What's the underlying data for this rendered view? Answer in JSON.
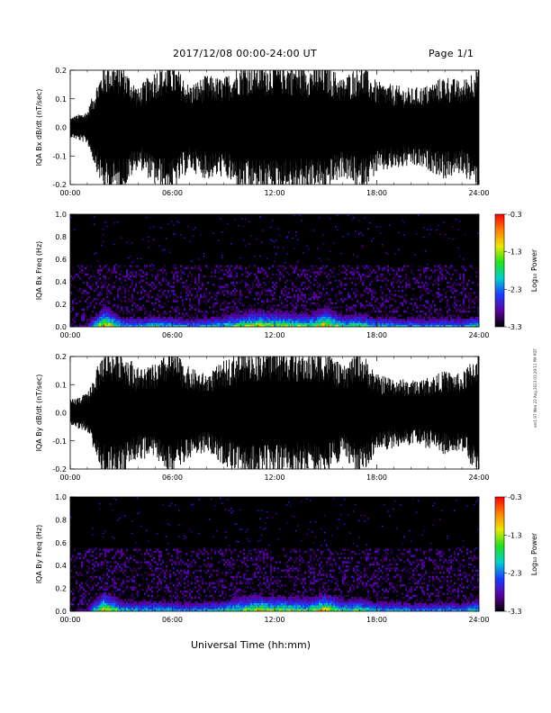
{
  "header": {
    "title": "2017/12/08  00:00-24:00 UT",
    "page": "Page 1/1"
  },
  "footer": {
    "xlabel": "Universal Time (hh:mm)",
    "side_note": "ver1.97 Wed 23 Aug 2023 03:29:11 PM PDT"
  },
  "colors": {
    "background": "#ffffff",
    "trace": "#000000",
    "spectrogram_background": "#000000",
    "colorbar_stops": [
      "#000000",
      "#5a00a0",
      "#1a3cff",
      "#00d0d0",
      "#20e020",
      "#e8e800",
      "#ff8000",
      "#ff0000"
    ]
  },
  "chart_data": [
    {
      "type": "line",
      "ylabel": "IQA Bx dB/dt (nT/sec)",
      "xlim": [
        "00:00",
        "24:00"
      ],
      "ylim": [
        -0.2,
        0.2
      ],
      "x_ticks": [
        "00:00",
        "06:00",
        "12:00",
        "18:00",
        "24:00"
      ],
      "y_ticks": [
        "-0.2",
        "-0.1",
        "0.0",
        "0.1",
        "0.2"
      ],
      "series": [
        {
          "x": [
            "00:00",
            "01:00",
            "02:00",
            "03:00",
            "04:00",
            "05:00",
            "06:00",
            "07:00",
            "08:00",
            "09:00",
            "10:00",
            "11:00",
            "12:00",
            "13:00",
            "14:00",
            "15:00",
            "16:00",
            "17:00",
            "18:00",
            "19:00",
            "20:00",
            "21:00",
            "22:00",
            "23:00",
            "24:00"
          ],
          "amplitude": [
            0.03,
            0.05,
            0.2,
            0.2,
            0.12,
            0.18,
            0.2,
            0.13,
            0.16,
            0.15,
            0.2,
            0.2,
            0.2,
            0.2,
            0.19,
            0.2,
            0.15,
            0.2,
            0.14,
            0.13,
            0.12,
            0.13,
            0.16,
            0.14,
            0.2
          ]
        }
      ]
    },
    {
      "type": "heatmap",
      "ylabel": "IQA Bx Freq (Hz)",
      "colorbar_label": "Log₁₀ Power",
      "colorbar_ticks": [
        "-0.3",
        "-1.3",
        "-2.3",
        "-3.3"
      ],
      "clim": [
        -3.3,
        -0.3
      ],
      "xlim": [
        "00:00",
        "24:00"
      ],
      "ylim": [
        0.0,
        1.0
      ],
      "x_ticks": [
        "00:00",
        "06:00",
        "12:00",
        "18:00",
        "24:00"
      ],
      "y_ticks": [
        "0.0",
        "0.2",
        "0.4",
        "0.6",
        "0.8",
        "1.0"
      ],
      "x": [
        "00:00",
        "01:00",
        "02:00",
        "03:00",
        "04:00",
        "05:00",
        "06:00",
        "07:00",
        "08:00",
        "09:00",
        "10:00",
        "11:00",
        "12:00",
        "13:00",
        "14:00",
        "15:00",
        "16:00",
        "17:00",
        "18:00",
        "19:00",
        "20:00",
        "21:00",
        "22:00",
        "23:00",
        "24:00"
      ],
      "activity": [
        0.1,
        0.15,
        0.85,
        0.45,
        0.4,
        0.45,
        0.4,
        0.35,
        0.4,
        0.45,
        0.6,
        0.7,
        0.65,
        0.6,
        0.55,
        0.8,
        0.5,
        0.55,
        0.4,
        0.4,
        0.35,
        0.35,
        0.4,
        0.35,
        0.5
      ]
    },
    {
      "type": "line",
      "ylabel": "IQA By dB/dt (nT/sec)",
      "xlim": [
        "00:00",
        "24:00"
      ],
      "ylim": [
        -0.2,
        0.2
      ],
      "x_ticks": [
        "00:00",
        "06:00",
        "12:00",
        "18:00",
        "24:00"
      ],
      "y_ticks": [
        "-0.2",
        "-0.1",
        "0.0",
        "0.1",
        "0.2"
      ],
      "series": [
        {
          "x": [
            "00:00",
            "01:00",
            "02:00",
            "03:00",
            "04:00",
            "05:00",
            "06:00",
            "07:00",
            "08:00",
            "09:00",
            "10:00",
            "11:00",
            "12:00",
            "13:00",
            "14:00",
            "15:00",
            "16:00",
            "17:00",
            "18:00",
            "19:00",
            "20:00",
            "21:00",
            "22:00",
            "23:00",
            "24:00"
          ],
          "amplitude": [
            0.04,
            0.06,
            0.2,
            0.2,
            0.14,
            0.15,
            0.2,
            0.14,
            0.12,
            0.16,
            0.2,
            0.2,
            0.2,
            0.2,
            0.18,
            0.2,
            0.14,
            0.2,
            0.12,
            0.11,
            0.1,
            0.11,
            0.13,
            0.12,
            0.2
          ]
        }
      ]
    },
    {
      "type": "heatmap",
      "ylabel": "IQA By Freq (Hz)",
      "colorbar_label": "Log₁₀ Power",
      "colorbar_ticks": [
        "-0.3",
        "-1.3",
        "-2.3",
        "-3.3"
      ],
      "clim": [
        -3.3,
        -0.3
      ],
      "xlim": [
        "00:00",
        "24:00"
      ],
      "ylim": [
        0.0,
        1.0
      ],
      "x_ticks": [
        "00:00",
        "06:00",
        "12:00",
        "18:00",
        "24:00"
      ],
      "y_ticks": [
        "0.0",
        "0.2",
        "0.4",
        "0.6",
        "0.8",
        "1.0"
      ],
      "x": [
        "00:00",
        "01:00",
        "02:00",
        "03:00",
        "04:00",
        "05:00",
        "06:00",
        "07:00",
        "08:00",
        "09:00",
        "10:00",
        "11:00",
        "12:00",
        "13:00",
        "14:00",
        "15:00",
        "16:00",
        "17:00",
        "18:00",
        "19:00",
        "20:00",
        "21:00",
        "22:00",
        "23:00",
        "24:00"
      ],
      "activity": [
        0.1,
        0.15,
        0.85,
        0.45,
        0.4,
        0.45,
        0.4,
        0.35,
        0.4,
        0.45,
        0.6,
        0.7,
        0.65,
        0.6,
        0.55,
        0.8,
        0.5,
        0.55,
        0.4,
        0.4,
        0.35,
        0.35,
        0.4,
        0.35,
        0.5
      ]
    }
  ]
}
